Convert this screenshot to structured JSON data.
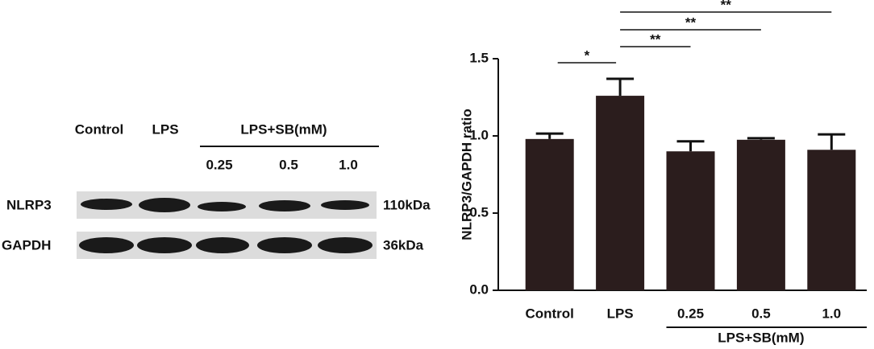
{
  "blot": {
    "lanes": [
      "Control",
      "LPS"
    ],
    "group_label": "LPS+SB(mM)",
    "doses": [
      "0.25",
      "0.5",
      "1.0"
    ],
    "rows": [
      {
        "label": "NLRP3",
        "size": "110kDa"
      },
      {
        "label": "GAPDH",
        "size": "36kDa"
      }
    ]
  },
  "chart_data": {
    "type": "bar",
    "categories": [
      "Control",
      "LPS",
      "0.25",
      "0.5",
      "1.0"
    ],
    "values": [
      0.98,
      1.26,
      0.9,
      0.975,
      0.91
    ],
    "errors": [
      0.035,
      0.11,
      0.065,
      0.01,
      0.1
    ],
    "color": "#2b1d1d",
    "ylabel": "NLRP3/GAPDH ratio",
    "ylim": [
      0,
      1.5
    ],
    "yticks": [
      {
        "value": 0,
        "label": "0.0"
      },
      {
        "value": 0.5,
        "label": "0.5"
      },
      {
        "value": 1,
        "label": "1.0"
      },
      {
        "value": 1.5,
        "label": "1.5"
      }
    ],
    "group_label": "LPS+SB(mM)",
    "significance": [
      "*",
      "**",
      "**",
      "**"
    ]
  }
}
